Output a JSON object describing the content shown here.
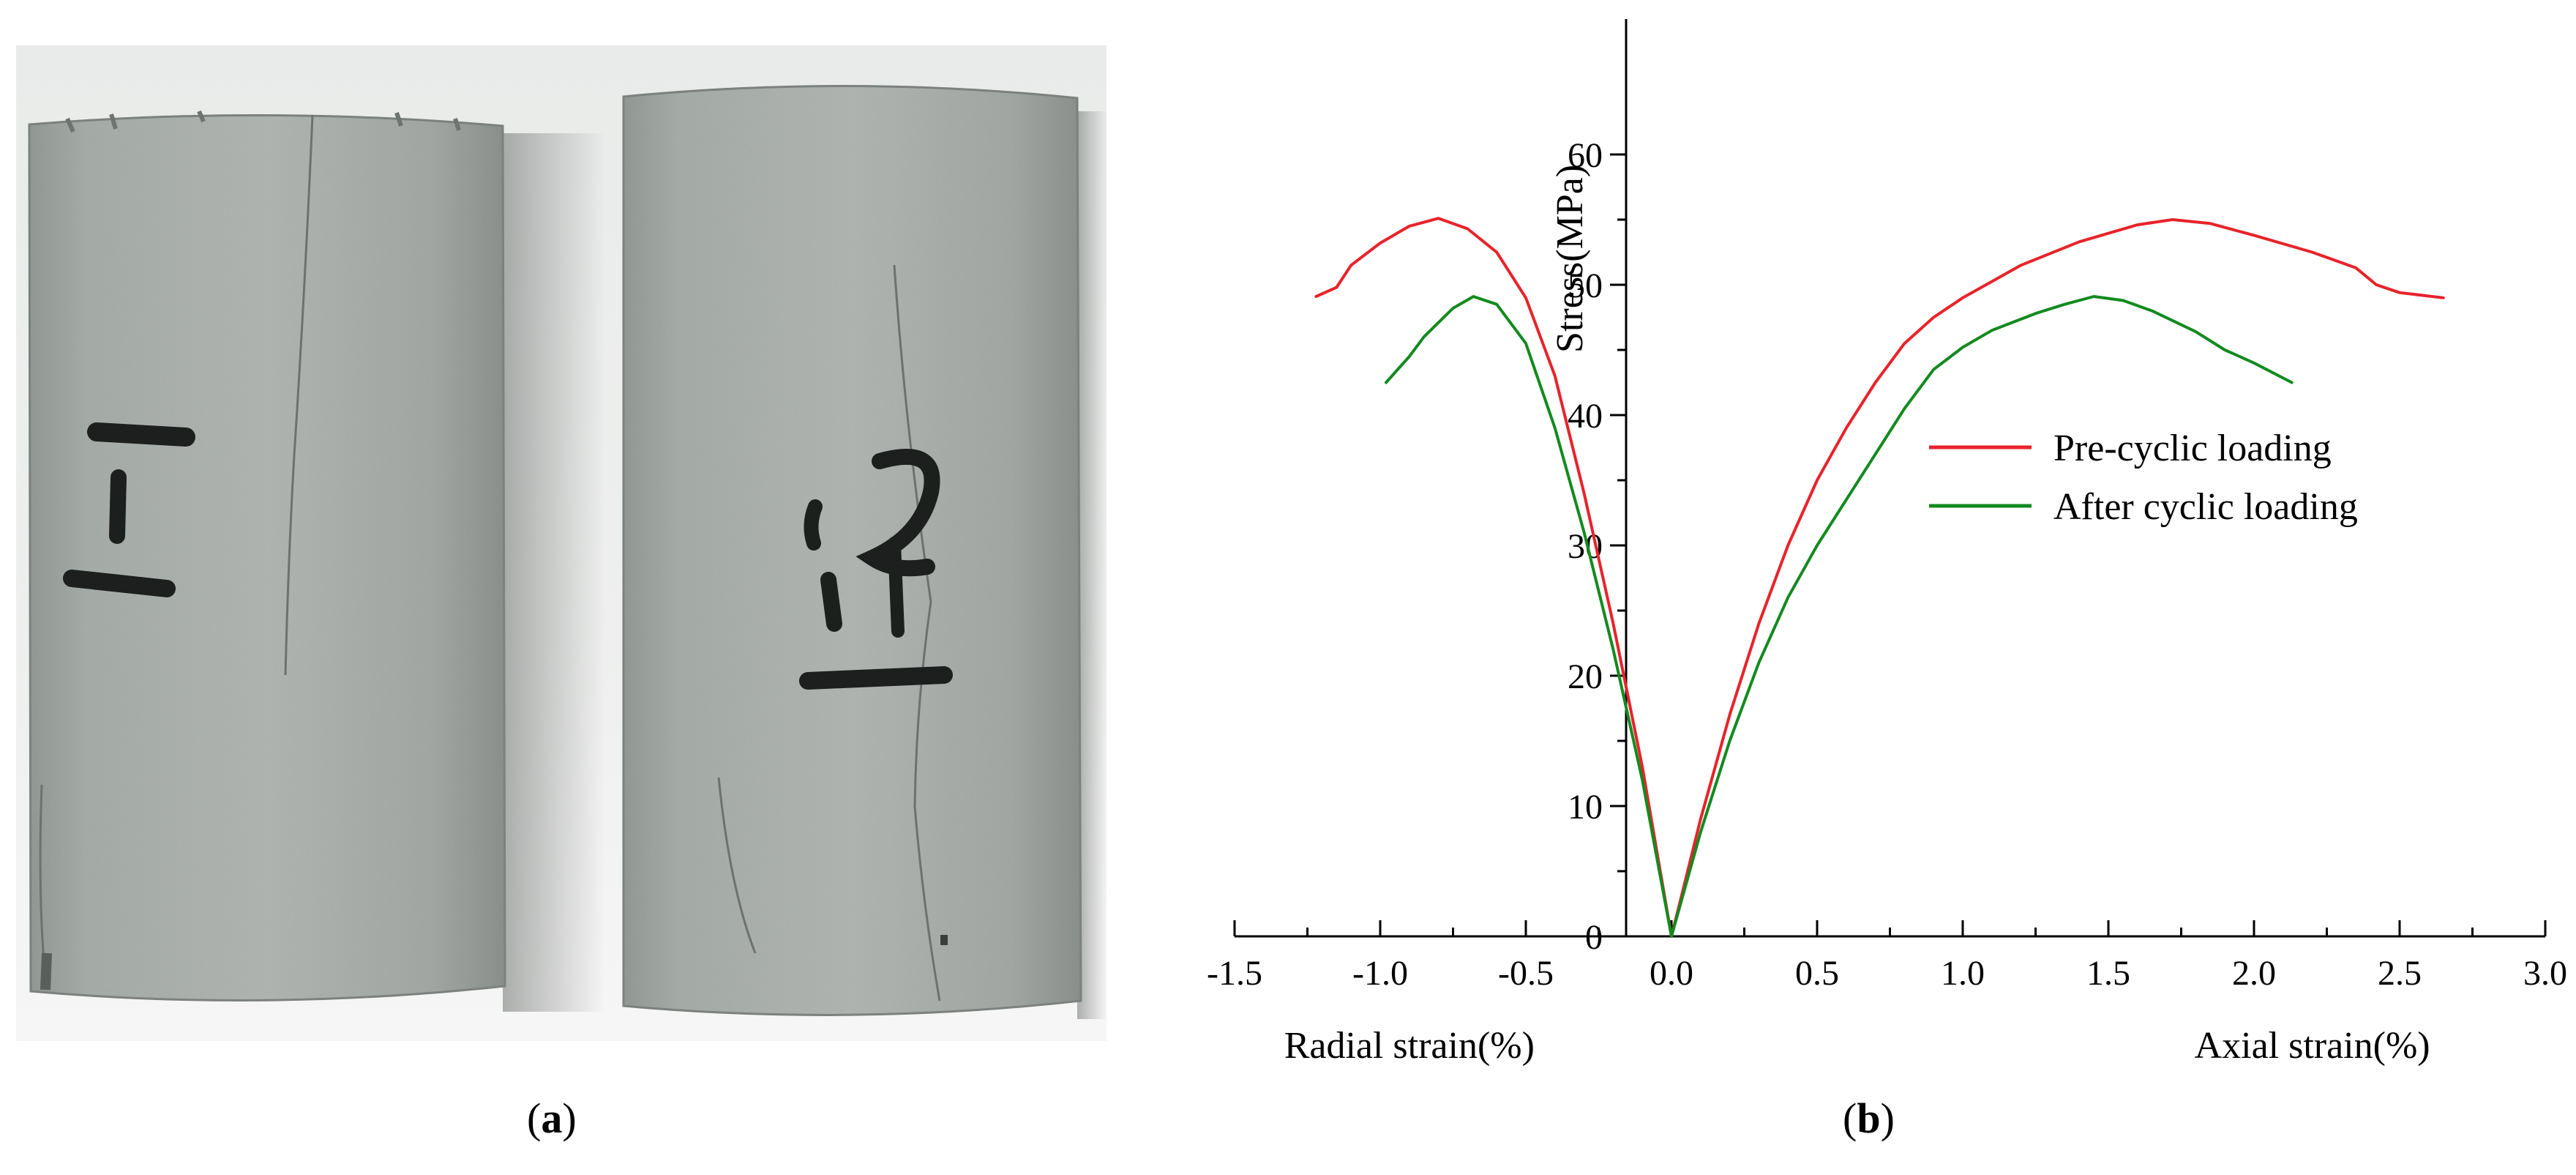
{
  "panels": {
    "a": {
      "caption_open": "(",
      "caption_letter": "a",
      "caption_close": ")",
      "specimens": [
        {
          "label": "1-1"
        },
        {
          "label": "1-2"
        }
      ]
    },
    "b": {
      "caption_open": "(",
      "caption_letter": "b",
      "caption_close": ")"
    }
  },
  "chart_data": {
    "type": "line",
    "ylabel": "Stress(MPa)",
    "xlabel_left": "Radial strain(%)",
    "xlabel_right": "Axial strain(%)",
    "xlim": [
      -1.5,
      3.0
    ],
    "ylim": [
      0,
      65
    ],
    "xticks": [
      "-1.5",
      "-1.0",
      "-0.5",
      "0.0",
      "0.5",
      "1.0",
      "1.5",
      "2.0",
      "2.5",
      "3.0"
    ],
    "yticks": [
      "0",
      "10",
      "20",
      "30",
      "40",
      "50",
      "60"
    ],
    "legend_position": "right-middle",
    "series": [
      {
        "name": "Pre-cyclic loading",
        "color": "#e8232a",
        "radial": [
          [
            -1.22,
            49.1
          ],
          [
            -1.15,
            49.8
          ],
          [
            -1.1,
            51.5
          ],
          [
            -1.0,
            53.2
          ],
          [
            -0.9,
            54.5
          ],
          [
            -0.8,
            55.1
          ],
          [
            -0.7,
            54.3
          ],
          [
            -0.6,
            52.5
          ],
          [
            -0.5,
            49.0
          ],
          [
            -0.4,
            43.0
          ],
          [
            -0.3,
            34.0
          ],
          [
            -0.2,
            24.0
          ],
          [
            -0.1,
            13.0
          ],
          [
            0.0,
            0.0
          ]
        ],
        "axial": [
          [
            0.0,
            0.0
          ],
          [
            0.1,
            9.0
          ],
          [
            0.2,
            17.0
          ],
          [
            0.3,
            24.0
          ],
          [
            0.4,
            30.0
          ],
          [
            0.5,
            35.0
          ],
          [
            0.6,
            39.0
          ],
          [
            0.7,
            42.5
          ],
          [
            0.8,
            45.5
          ],
          [
            0.9,
            47.5
          ],
          [
            1.0,
            49.0
          ],
          [
            1.2,
            51.5
          ],
          [
            1.4,
            53.3
          ],
          [
            1.6,
            54.6
          ],
          [
            1.72,
            55.0
          ],
          [
            1.85,
            54.7
          ],
          [
            2.0,
            53.8
          ],
          [
            2.2,
            52.5
          ],
          [
            2.35,
            51.3
          ],
          [
            2.42,
            50.0
          ],
          [
            2.5,
            49.4
          ],
          [
            2.65,
            49.0
          ]
        ]
      },
      {
        "name": "After cyclic loading",
        "color": "#138a1f",
        "radial": [
          [
            -0.98,
            42.5
          ],
          [
            -0.9,
            44.5
          ],
          [
            -0.85,
            46.0
          ],
          [
            -0.75,
            48.2
          ],
          [
            -0.68,
            49.1
          ],
          [
            -0.6,
            48.5
          ],
          [
            -0.5,
            45.5
          ],
          [
            -0.4,
            39.0
          ],
          [
            -0.3,
            31.0
          ],
          [
            -0.2,
            22.0
          ],
          [
            -0.1,
            12.0
          ],
          [
            0.0,
            0.0
          ]
        ],
        "axial": [
          [
            0.0,
            0.0
          ],
          [
            0.1,
            8.0
          ],
          [
            0.2,
            15.0
          ],
          [
            0.3,
            21.0
          ],
          [
            0.4,
            26.0
          ],
          [
            0.5,
            30.0
          ],
          [
            0.6,
            33.5
          ],
          [
            0.7,
            37.0
          ],
          [
            0.8,
            40.5
          ],
          [
            0.9,
            43.5
          ],
          [
            1.0,
            45.2
          ],
          [
            1.1,
            46.5
          ],
          [
            1.25,
            47.8
          ],
          [
            1.35,
            48.5
          ],
          [
            1.45,
            49.1
          ],
          [
            1.55,
            48.8
          ],
          [
            1.65,
            48.0
          ],
          [
            1.8,
            46.4
          ],
          [
            1.9,
            45.0
          ],
          [
            2.0,
            44.0
          ],
          [
            2.13,
            42.5
          ]
        ]
      }
    ]
  }
}
